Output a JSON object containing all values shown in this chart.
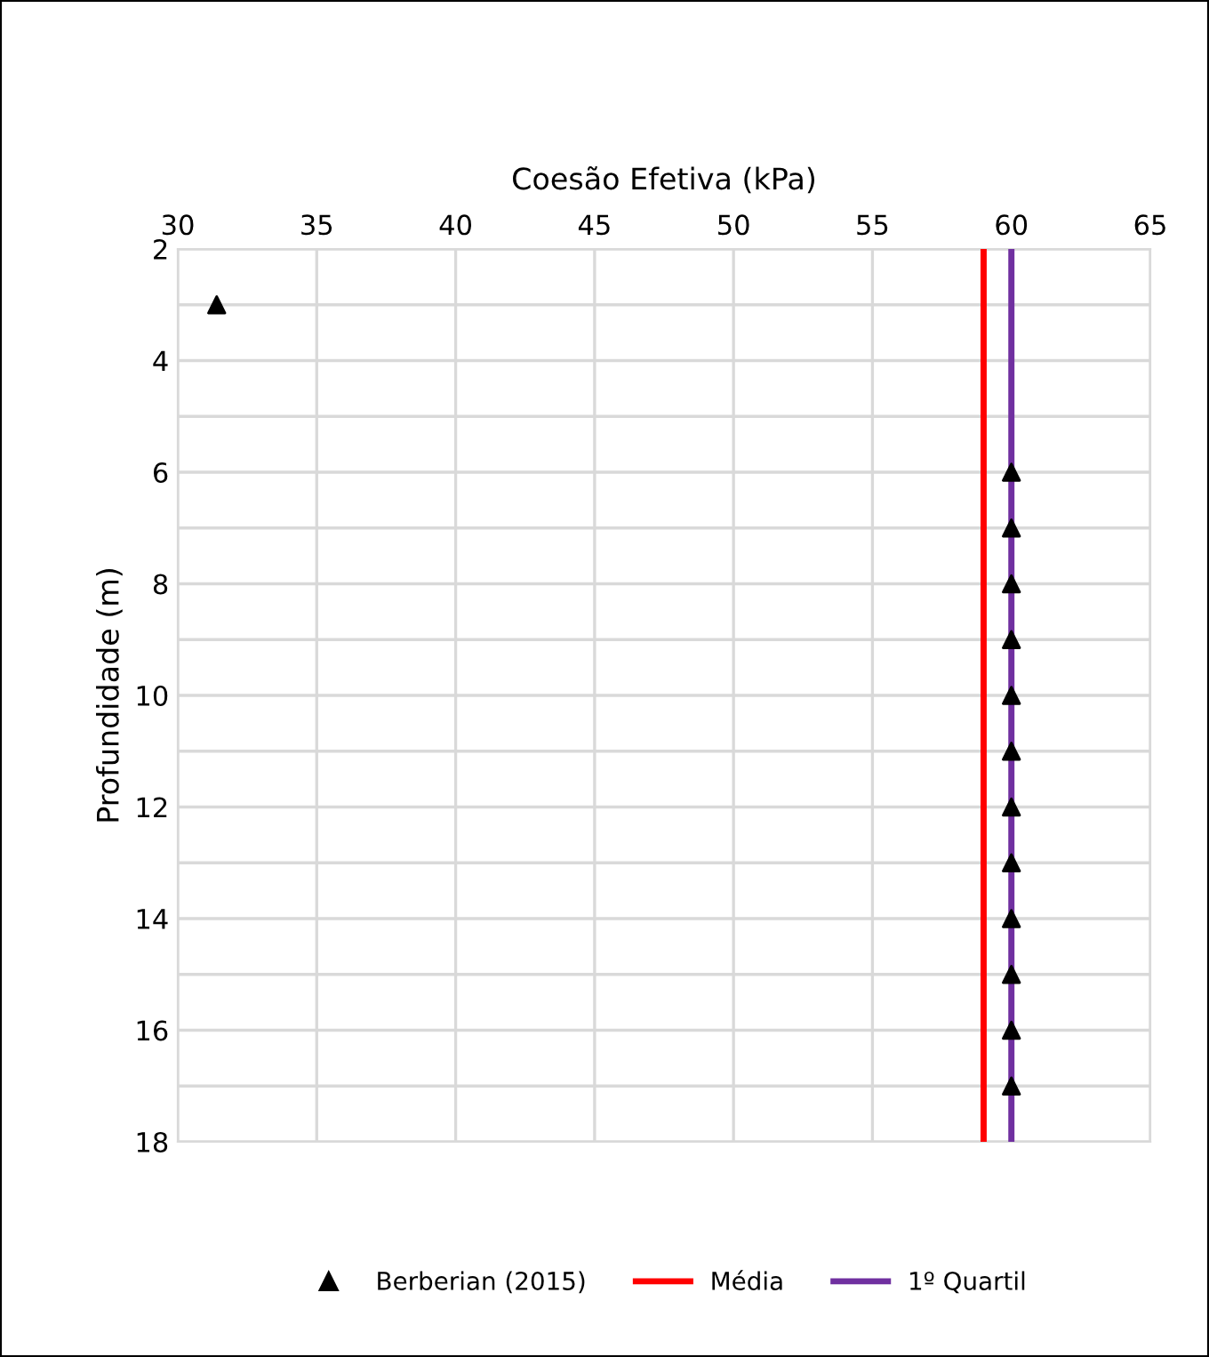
{
  "chart_data": {
    "type": "scatter",
    "xlabel": "Coesão Efetiva (kPa)",
    "ylabel": "Profundidade (m)",
    "xlim": [
      30,
      65
    ],
    "xticks": [
      30,
      35,
      40,
      45,
      50,
      55,
      60,
      65
    ],
    "ylim": [
      18,
      2
    ],
    "yticks": [
      2,
      {
        "value": 3,
        "label": null
      },
      4,
      {
        "value": 5,
        "label": null
      },
      6,
      {
        "value": 7,
        "label": null
      },
      8,
      {
        "value": 9,
        "label": null
      },
      10,
      {
        "value": 11,
        "label": null
      },
      12,
      {
        "value": 13,
        "label": null
      },
      14,
      {
        "value": 15,
        "label": null
      },
      16,
      {
        "value": 17,
        "label": null
      },
      18
    ],
    "grid": true,
    "legend": "bottom",
    "series": [
      {
        "name": "Berberian (2015)",
        "marker": "triangle",
        "color": "#000000",
        "x": [
          31.4,
          60,
          60,
          60,
          60,
          60,
          60,
          60,
          60,
          60,
          60,
          60,
          60
        ],
        "values": [
          3,
          6,
          7,
          8,
          9,
          10,
          11,
          12,
          13,
          14,
          15,
          16,
          17
        ]
      },
      {
        "name": "Média",
        "type": "line",
        "marker": "none",
        "color": "#ff0000",
        "x": [
          59.0,
          59.0
        ],
        "values": [
          2,
          18
        ]
      },
      {
        "name": "1º Quartil",
        "type": "line",
        "marker": "none",
        "color": "#7030a0",
        "x": [
          60,
          60
        ],
        "values": [
          2,
          18
        ]
      }
    ]
  }
}
